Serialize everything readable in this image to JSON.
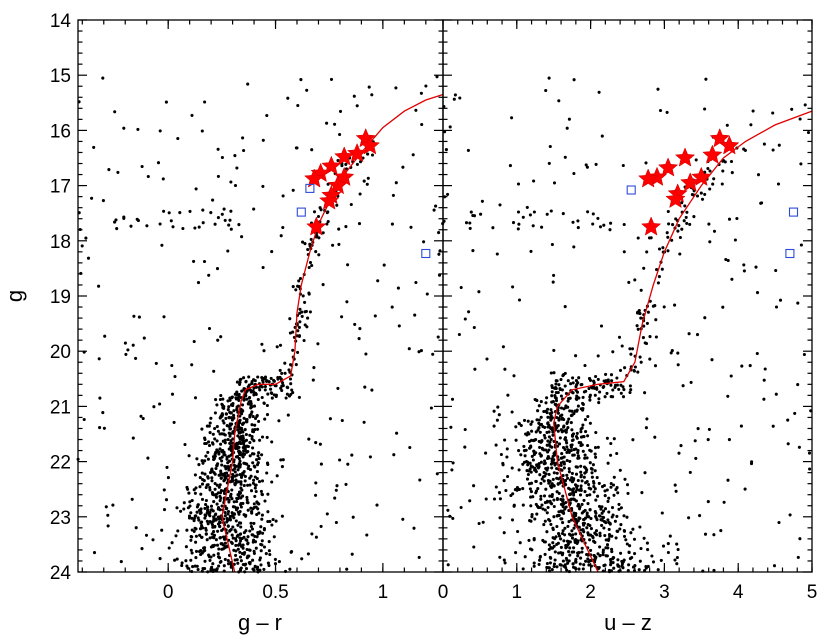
{
  "chart_data": [
    {
      "type": "scatter",
      "panel": "left",
      "xlabel": "g – r",
      "ylabel": "g",
      "xlim": [
        -0.42,
        1.28
      ],
      "ylim": [
        24,
        14
      ],
      "xticks": [
        0,
        0.5,
        1
      ],
      "xtick_labels": [
        "0",
        "0.5",
        "1"
      ],
      "yticks": [
        14,
        15,
        16,
        17,
        18,
        19,
        20,
        21,
        22,
        23,
        24
      ],
      "ytick_labels": [
        "14",
        "15",
        "16",
        "17",
        "18",
        "19",
        "20",
        "21",
        "22",
        "23",
        "24"
      ],
      "series": [
        {
          "marker": "filled-star",
          "color": "#ff0000",
          "points": [
            [
              0.92,
              16.15
            ],
            [
              0.94,
              16.28
            ],
            [
              0.88,
              16.42
            ],
            [
              0.82,
              16.48
            ],
            [
              0.76,
              16.65
            ],
            [
              0.71,
              16.78
            ],
            [
              0.68,
              16.88
            ],
            [
              0.82,
              16.85
            ],
            [
              0.79,
              17.0
            ],
            [
              0.76,
              17.18
            ],
            [
              0.75,
              17.28
            ],
            [
              0.69,
              17.75
            ]
          ]
        },
        {
          "marker": "open-square",
          "color": "#2e4bd8",
          "points": [
            [
              0.66,
              17.05
            ],
            [
              0.62,
              17.48
            ],
            [
              1.2,
              18.23
            ]
          ]
        }
      ],
      "fit_line": {
        "color": "#e00000",
        "points": [
          [
            0.31,
            24.0
          ],
          [
            0.25,
            23.0
          ],
          [
            0.3,
            22.0
          ],
          [
            0.31,
            21.5
          ],
          [
            0.34,
            20.9
          ],
          [
            0.36,
            20.7
          ],
          [
            0.42,
            20.6
          ],
          [
            0.5,
            20.6
          ],
          [
            0.57,
            20.45
          ],
          [
            0.59,
            20.0
          ],
          [
            0.6,
            19.3
          ],
          [
            0.62,
            18.8
          ],
          [
            0.66,
            18.2
          ],
          [
            0.7,
            17.7
          ],
          [
            0.8,
            16.9
          ],
          [
            0.9,
            16.4
          ],
          [
            1.0,
            15.95
          ],
          [
            1.1,
            15.65
          ],
          [
            1.2,
            15.45
          ],
          [
            1.28,
            15.35
          ]
        ]
      },
      "scatter_seed": 1234
    },
    {
      "type": "scatter",
      "panel": "right",
      "xlabel": "u – z",
      "ylabel": "",
      "xlim": [
        0,
        5
      ],
      "ylim": [
        24,
        14
      ],
      "xticks": [
        0,
        1,
        2,
        3,
        4,
        5
      ],
      "xtick_labels": [
        "0",
        "1",
        "2",
        "3",
        "4",
        "5"
      ],
      "series": [
        {
          "marker": "filled-star",
          "color": "#ff0000",
          "points": [
            [
              3.75,
              16.15
            ],
            [
              3.88,
              16.28
            ],
            [
              3.65,
              16.45
            ],
            [
              3.28,
              16.5
            ],
            [
              3.05,
              16.68
            ],
            [
              2.9,
              16.85
            ],
            [
              2.78,
              16.88
            ],
            [
              3.5,
              16.85
            ],
            [
              3.35,
              16.95
            ],
            [
              3.18,
              17.15
            ],
            [
              3.15,
              17.25
            ],
            [
              2.82,
              17.75
            ]
          ]
        },
        {
          "marker": "open-square",
          "color": "#2e4bd8",
          "points": [
            [
              2.55,
              17.08
            ],
            [
              4.75,
              17.48
            ],
            [
              4.7,
              18.23
            ]
          ]
        }
      ],
      "fit_line": {
        "color": "#e00000",
        "points": [
          [
            2.1,
            24.0
          ],
          [
            1.75,
            23.0
          ],
          [
            1.55,
            22.0
          ],
          [
            1.5,
            21.3
          ],
          [
            1.55,
            21.0
          ],
          [
            1.75,
            20.7
          ],
          [
            2.1,
            20.6
          ],
          [
            2.45,
            20.55
          ],
          [
            2.6,
            20.2
          ],
          [
            2.7,
            19.5
          ],
          [
            2.85,
            18.8
          ],
          [
            3.0,
            18.2
          ],
          [
            3.2,
            17.6
          ],
          [
            3.5,
            17.0
          ],
          [
            3.8,
            16.5
          ],
          [
            4.1,
            16.2
          ],
          [
            4.5,
            15.9
          ],
          [
            5.0,
            15.65
          ]
        ]
      },
      "scatter_seed": 5678
    }
  ]
}
